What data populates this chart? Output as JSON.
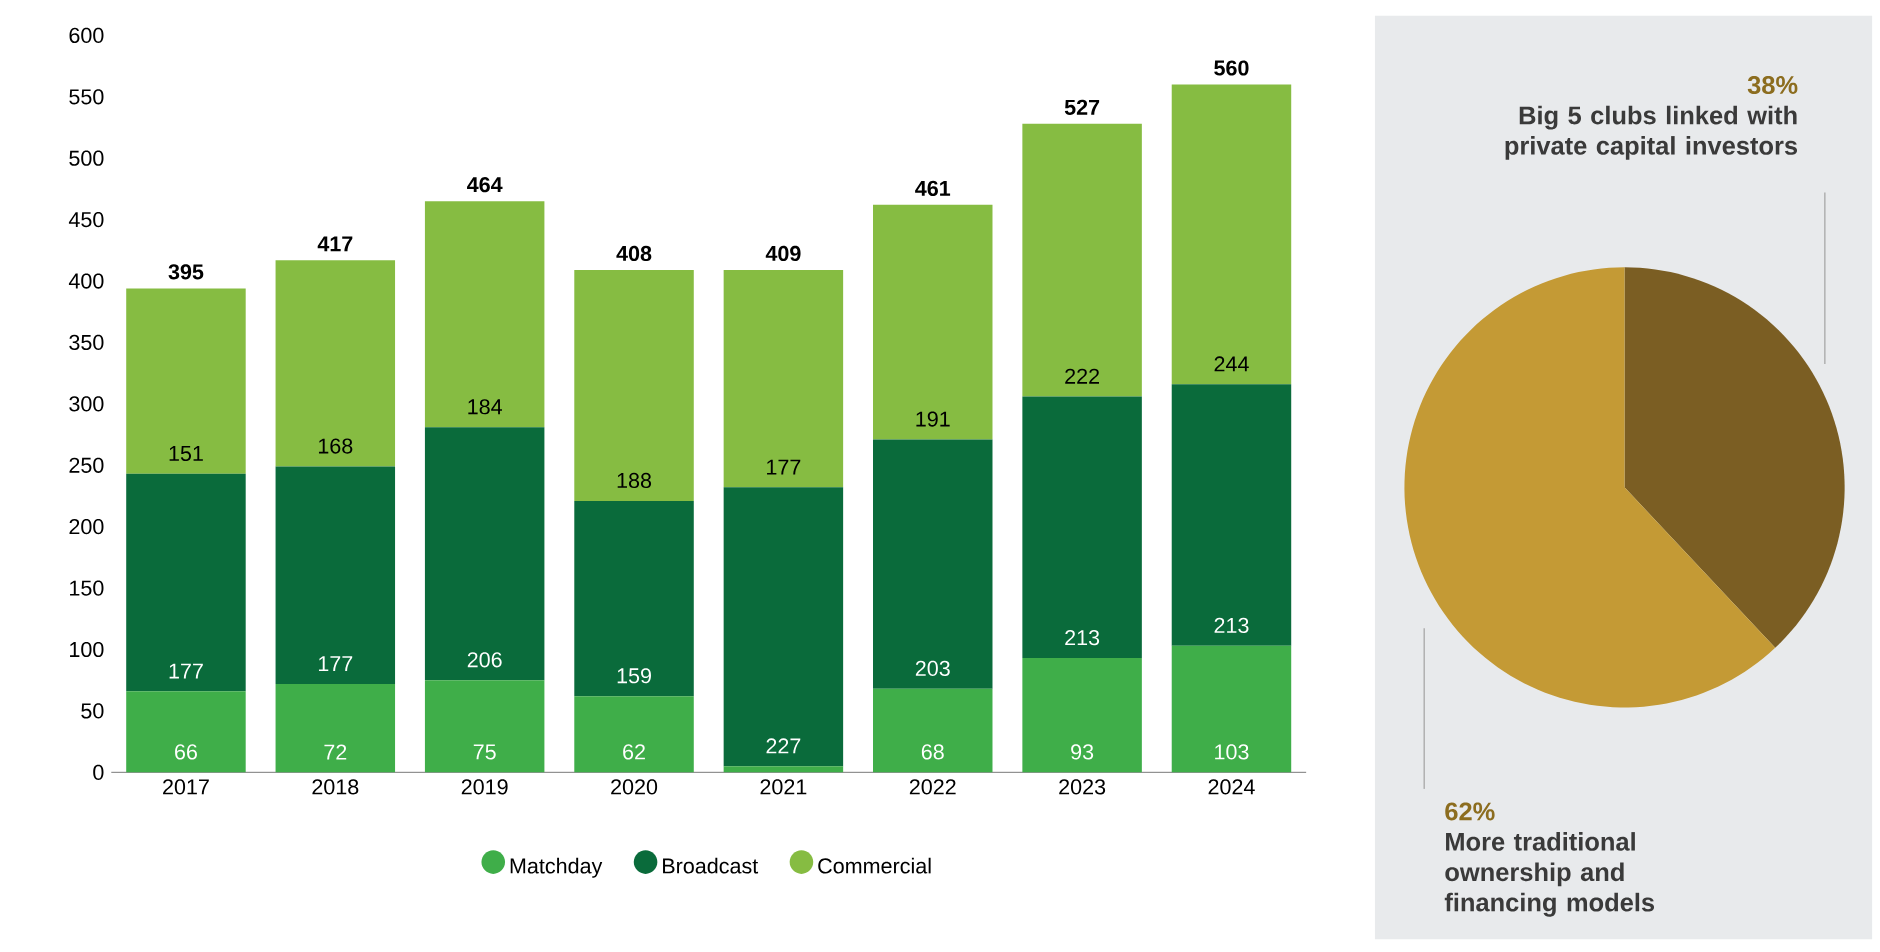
{
  "chart_data": [
    {
      "type": "bar",
      "stacked": true,
      "categories": [
        "2017",
        "2018",
        "2019",
        "2020",
        "2021",
        "2022",
        "2023",
        "2024"
      ],
      "series": [
        {
          "name": "Matchday",
          "color": "#3fae49",
          "values": [
            66,
            72,
            75,
            62,
            5,
            68,
            93,
            103
          ],
          "value_labels": [
            "66",
            "72",
            "75",
            "62",
            null,
            "68",
            "93",
            "103"
          ]
        },
        {
          "name": "Broadcast",
          "color": "#0a6b3b",
          "values": [
            177,
            177,
            206,
            159,
            227,
            203,
            213,
            213
          ],
          "value_labels": [
            "177",
            "177",
            "206",
            "159",
            "227",
            "203",
            "213",
            "213"
          ]
        },
        {
          "name": "Commercial",
          "color": "#86bc42",
          "values": [
            151,
            168,
            184,
            188,
            177,
            191,
            222,
            244
          ],
          "value_labels": [
            "151",
            "168",
            "184",
            "188",
            "177",
            "191",
            "222",
            "244"
          ]
        }
      ],
      "totals": [
        "395",
        "417",
        "464",
        "408",
        "409",
        "461",
        "527",
        "560"
      ],
      "ylim": [
        0,
        600
      ],
      "yticks": [
        0,
        50,
        100,
        150,
        200,
        250,
        300,
        350,
        400,
        450,
        500,
        550,
        600
      ],
      "legend": "bottom"
    },
    {
      "type": "pie",
      "categories": [
        "Big 5 clubs linked with private capital investors",
        "More traditional ownership and financing models"
      ],
      "values": [
        38,
        62
      ],
      "colors": [
        "#7b5e23",
        "#c49a35"
      ],
      "value_labels": [
        "38%",
        "62%"
      ]
    }
  ]
}
